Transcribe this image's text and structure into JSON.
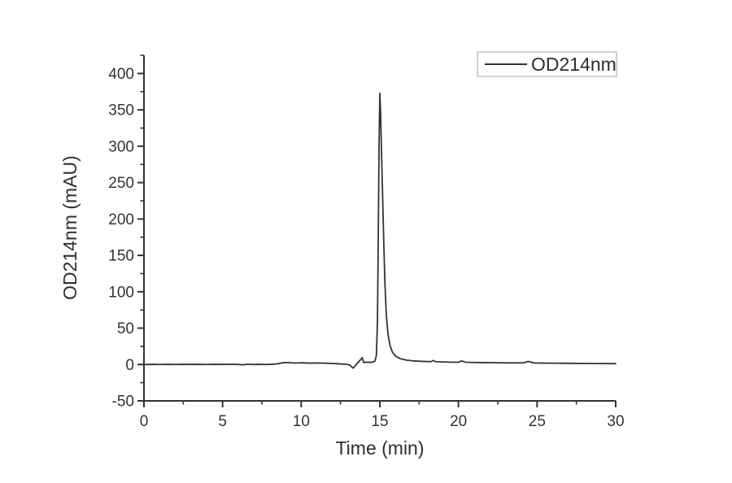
{
  "page": {
    "background": "#ffffff",
    "description": "Chromatogram line plot of OD214nm absorbance versus time"
  },
  "chart_data": {
    "type": "line",
    "title": "",
    "xlabel": "Time (min)",
    "ylabel": "OD214nm (mAU)",
    "xlim": [
      0,
      30
    ],
    "ylim": [
      -50,
      425
    ],
    "grid": false,
    "axis_color": "#333333",
    "x_major_ticks": [
      0,
      5,
      10,
      15,
      20,
      25,
      30
    ],
    "x_minor_ticks": [
      2.5,
      7.5,
      12.5,
      17.5,
      22.5,
      27.5
    ],
    "y_major_ticks": [
      -50,
      0,
      50,
      100,
      150,
      200,
      250,
      300,
      350,
      400
    ],
    "y_minor_ticks": [
      -25,
      25,
      75,
      125,
      175,
      225,
      275,
      325,
      375,
      425
    ],
    "legend": {
      "label": "OD214nm",
      "position": "top-right",
      "line_color": "#333333"
    },
    "peak": {
      "time_min": 15.0,
      "value_mAU": 373
    },
    "series": [
      {
        "name": "OD214nm",
        "color": "#333333",
        "points": [
          [
            0,
            0
          ],
          [
            0.5,
            0.2
          ],
          [
            1,
            0
          ],
          [
            1.5,
            0.2
          ],
          [
            2,
            0
          ],
          [
            2.5,
            0.2
          ],
          [
            3,
            0.1
          ],
          [
            3.5,
            0.2
          ],
          [
            4,
            0
          ],
          [
            4.5,
            0.2
          ],
          [
            5,
            0.1
          ],
          [
            5.5,
            0.2
          ],
          [
            6,
            0.1
          ],
          [
            6.3,
            -0.4
          ],
          [
            6.6,
            0.4
          ],
          [
            6.9,
            0
          ],
          [
            7.3,
            0.2
          ],
          [
            7.7,
            0
          ],
          [
            8.1,
            0.2
          ],
          [
            8.5,
            1
          ],
          [
            8.9,
            2.7
          ],
          [
            9.2,
            2.5
          ],
          [
            9.6,
            2
          ],
          [
            10,
            2.3
          ],
          [
            10.5,
            1.9
          ],
          [
            11,
            2.1
          ],
          [
            11.5,
            1.8
          ],
          [
            12,
            1.4
          ],
          [
            12.5,
            0.8
          ],
          [
            12.9,
            0.3
          ],
          [
            13.1,
            -1
          ],
          [
            13.3,
            -5
          ],
          [
            13.45,
            -1.5
          ],
          [
            13.6,
            2.5
          ],
          [
            13.75,
            6
          ],
          [
            13.88,
            9.5
          ],
          [
            13.96,
            3
          ],
          [
            14.2,
            3
          ],
          [
            14.5,
            3
          ],
          [
            14.68,
            4.5
          ],
          [
            14.78,
            12
          ],
          [
            14.85,
            60
          ],
          [
            14.9,
            170
          ],
          [
            14.95,
            300
          ],
          [
            15,
            373
          ],
          [
            15.05,
            345
          ],
          [
            15.1,
            298
          ],
          [
            15.17,
            238
          ],
          [
            15.25,
            168
          ],
          [
            15.33,
            108
          ],
          [
            15.42,
            66
          ],
          [
            15.52,
            42
          ],
          [
            15.65,
            26
          ],
          [
            15.8,
            17
          ],
          [
            16,
            11.5
          ],
          [
            16.3,
            8
          ],
          [
            16.7,
            6
          ],
          [
            17.1,
            5
          ],
          [
            17.6,
            4.4
          ],
          [
            18.1,
            4
          ],
          [
            18.25,
            3.9
          ],
          [
            18.4,
            5.6
          ],
          [
            18.55,
            3.9
          ],
          [
            19,
            3.5
          ],
          [
            19.5,
            3.2
          ],
          [
            20,
            3.1
          ],
          [
            20.2,
            5
          ],
          [
            20.45,
            3.1
          ],
          [
            21,
            2.8
          ],
          [
            21.5,
            2.6
          ],
          [
            22,
            2.5
          ],
          [
            22.6,
            2.3
          ],
          [
            23.2,
            2.2
          ],
          [
            23.8,
            2.2
          ],
          [
            24.15,
            2.4
          ],
          [
            24.45,
            4.2
          ],
          [
            24.8,
            2.1
          ],
          [
            25.4,
            1.9
          ],
          [
            26,
            1.8
          ],
          [
            27,
            1.6
          ],
          [
            28,
            1.4
          ],
          [
            29,
            1.3
          ],
          [
            30,
            1.2
          ]
        ]
      }
    ]
  }
}
